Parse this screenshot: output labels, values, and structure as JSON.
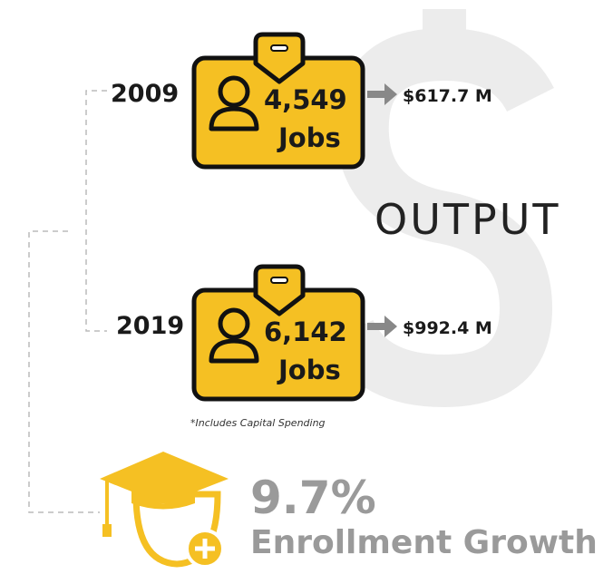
{
  "items": [
    {
      "year": "2009",
      "jobs": "4,549",
      "jobs_label": "Jobs",
      "output": "$617.7 M"
    },
    {
      "year": "2019",
      "jobs": "6,142",
      "jobs_label": "Jobs",
      "output": "$992.4 M"
    }
  ],
  "output_label": "OUTPUT",
  "footnote": "*Includes Capital Spending",
  "growth": {
    "value": "9.7%",
    "label": "Enrollment Growth"
  }
}
